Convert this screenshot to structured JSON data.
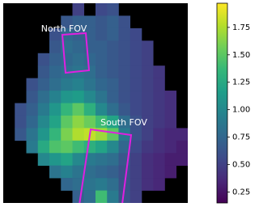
{
  "chart_data": {
    "type": "heatmap",
    "colormap": "viridis",
    "clim": [
      0.15,
      1.97
    ],
    "cticks": [
      0.25,
      {
        "value": 0.5,
        "label": "0.50"
      },
      0.75,
      {
        "value": 1.0,
        "label": "1.00"
      },
      1.25,
      {
        "value": 1.5,
        "label": "1.50"
      },
      1.75
    ],
    "annotations": [
      "North FOV",
      "South FOV"
    ],
    "z": [
      [
        null,
        null,
        null,
        null,
        null,
        null,
        0.5,
        null,
        0.55,
        0.6,
        null,
        null,
        null,
        null,
        null,
        null
      ],
      [
        null,
        null,
        null,
        null,
        null,
        0.65,
        0.7,
        0.7,
        0.65,
        0.7,
        0.6,
        null,
        null,
        null,
        null,
        null
      ],
      [
        null,
        null,
        null,
        null,
        0.6,
        0.75,
        0.7,
        0.7,
        0.65,
        0.7,
        0.6,
        0.55,
        null,
        null,
        null,
        null
      ],
      [
        null,
        null,
        null,
        null,
        0.65,
        0.8,
        0.75,
        0.7,
        0.7,
        0.65,
        0.6,
        0.55,
        0.5,
        null,
        null,
        null
      ],
      [
        null,
        null,
        null,
        0.6,
        0.7,
        0.75,
        0.8,
        0.75,
        0.7,
        0.65,
        0.6,
        0.55,
        0.5,
        null,
        null,
        null
      ],
      [
        null,
        null,
        null,
        0.65,
        0.75,
        0.8,
        0.85,
        0.8,
        0.7,
        0.65,
        0.6,
        0.55,
        0.5,
        0.45,
        null,
        null
      ],
      [
        null,
        null,
        0.6,
        0.7,
        0.8,
        0.9,
        0.95,
        0.85,
        0.75,
        0.7,
        0.6,
        0.55,
        0.5,
        0.45,
        null,
        null
      ],
      [
        null,
        null,
        0.65,
        0.8,
        0.95,
        1.1,
        1.15,
        1.0,
        0.85,
        0.7,
        0.6,
        0.55,
        0.5,
        0.45,
        0.4,
        null
      ],
      [
        null,
        0.6,
        0.7,
        0.9,
        1.1,
        1.35,
        1.5,
        1.3,
        1.0,
        0.8,
        0.65,
        0.55,
        0.5,
        0.45,
        0.4,
        null
      ],
      [
        null,
        0.6,
        0.75,
        1.0,
        1.2,
        1.5,
        1.65,
        1.55,
        1.4,
        1.2,
        0.8,
        0.6,
        0.5,
        0.45,
        0.4,
        null
      ],
      [
        null,
        0.65,
        0.85,
        1.1,
        1.35,
        1.6,
        1.75,
        1.8,
        1.7,
        1.5,
        0.9,
        0.6,
        0.5,
        0.4,
        0.35,
        0.35
      ],
      [
        null,
        null,
        0.9,
        1.25,
        1.45,
        1.5,
        1.4,
        1.3,
        1.2,
        1.0,
        0.75,
        0.55,
        0.45,
        0.4,
        0.35,
        0.3
      ],
      [
        null,
        null,
        null,
        1.0,
        1.1,
        1.2,
        1.0,
        0.9,
        0.85,
        0.8,
        0.65,
        0.5,
        0.4,
        0.35,
        0.3,
        0.3
      ],
      [
        null,
        null,
        null,
        null,
        0.85,
        0.95,
        0.85,
        0.8,
        0.75,
        0.7,
        0.6,
        0.5,
        0.4,
        0.35,
        0.3,
        null
      ],
      [
        null,
        null,
        null,
        null,
        null,
        0.75,
        0.8,
        0.85,
        0.9,
        0.8,
        0.6,
        0.5,
        0.4,
        0.35,
        null,
        null
      ],
      [
        null,
        null,
        null,
        null,
        null,
        null,
        0.7,
        0.8,
        1.4,
        0.9,
        0.6,
        0.5,
        null,
        null,
        null,
        null
      ]
    ]
  }
}
